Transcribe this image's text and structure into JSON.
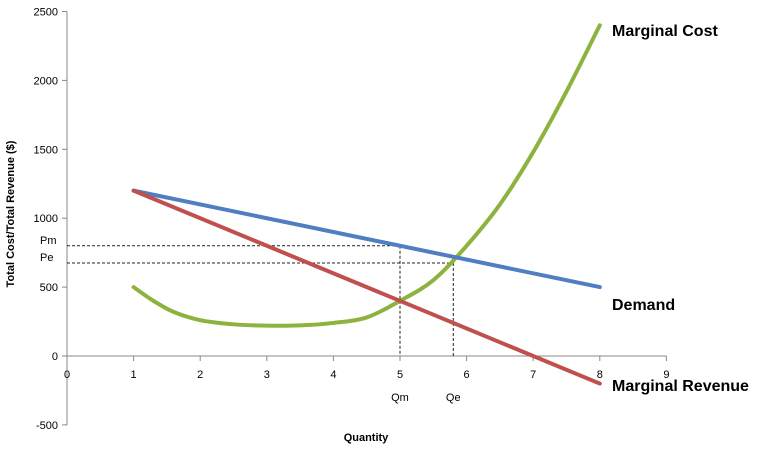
{
  "chart_data": {
    "type": "line",
    "title": "",
    "xlabel": "Quantity",
    "ylabel": "Total Cost/Total Revenue ($)",
    "xlim": [
      0,
      9
    ],
    "ylim": [
      -500,
      2500
    ],
    "x_ticks": [
      "0",
      "1",
      "2",
      "3",
      "4",
      "5",
      "6",
      "7",
      "8",
      "9"
    ],
    "y_ticks": [
      "2500",
      "2000",
      "1500",
      "1000",
      "500",
      "0",
      "-500"
    ],
    "grid": false,
    "series": [
      {
        "name": "Marginal Cost",
        "color": "#8db33e",
        "x": [
          1,
          1.3,
          1.6,
          2,
          2.5,
          3,
          3.5,
          4,
          4.5,
          5,
          5.5,
          6,
          6.5,
          7,
          7.5,
          8
        ],
        "values": [
          500,
          400,
          320,
          260,
          230,
          220,
          222,
          240,
          280,
          400,
          550,
          800,
          1100,
          1480,
          1920,
          2400
        ]
      },
      {
        "name": "Demand",
        "color": "#4f7fc1",
        "x": [
          1,
          8
        ],
        "values": [
          1200,
          500
        ]
      },
      {
        "name": "Marginal Revenue",
        "color": "#c0504d",
        "x": [
          1,
          8
        ],
        "values": [
          1200,
          -200
        ]
      }
    ],
    "annotations": [
      {
        "label": "Pm",
        "axis": "y",
        "value": 800
      },
      {
        "label": "Pe",
        "axis": "y",
        "value": 675
      },
      {
        "label": "Qm",
        "axis": "x",
        "value": 5
      },
      {
        "label": "Qe",
        "axis": "x",
        "value": 5.8
      }
    ],
    "reference_lines": [
      {
        "from": [
          0,
          800
        ],
        "to": [
          5,
          800
        ]
      },
      {
        "from": [
          5,
          800
        ],
        "to": [
          5,
          0
        ]
      },
      {
        "from": [
          0,
          675
        ],
        "to": [
          5.8,
          675
        ]
      },
      {
        "from": [
          5.8,
          675
        ],
        "to": [
          5.8,
          0
        ]
      }
    ]
  }
}
